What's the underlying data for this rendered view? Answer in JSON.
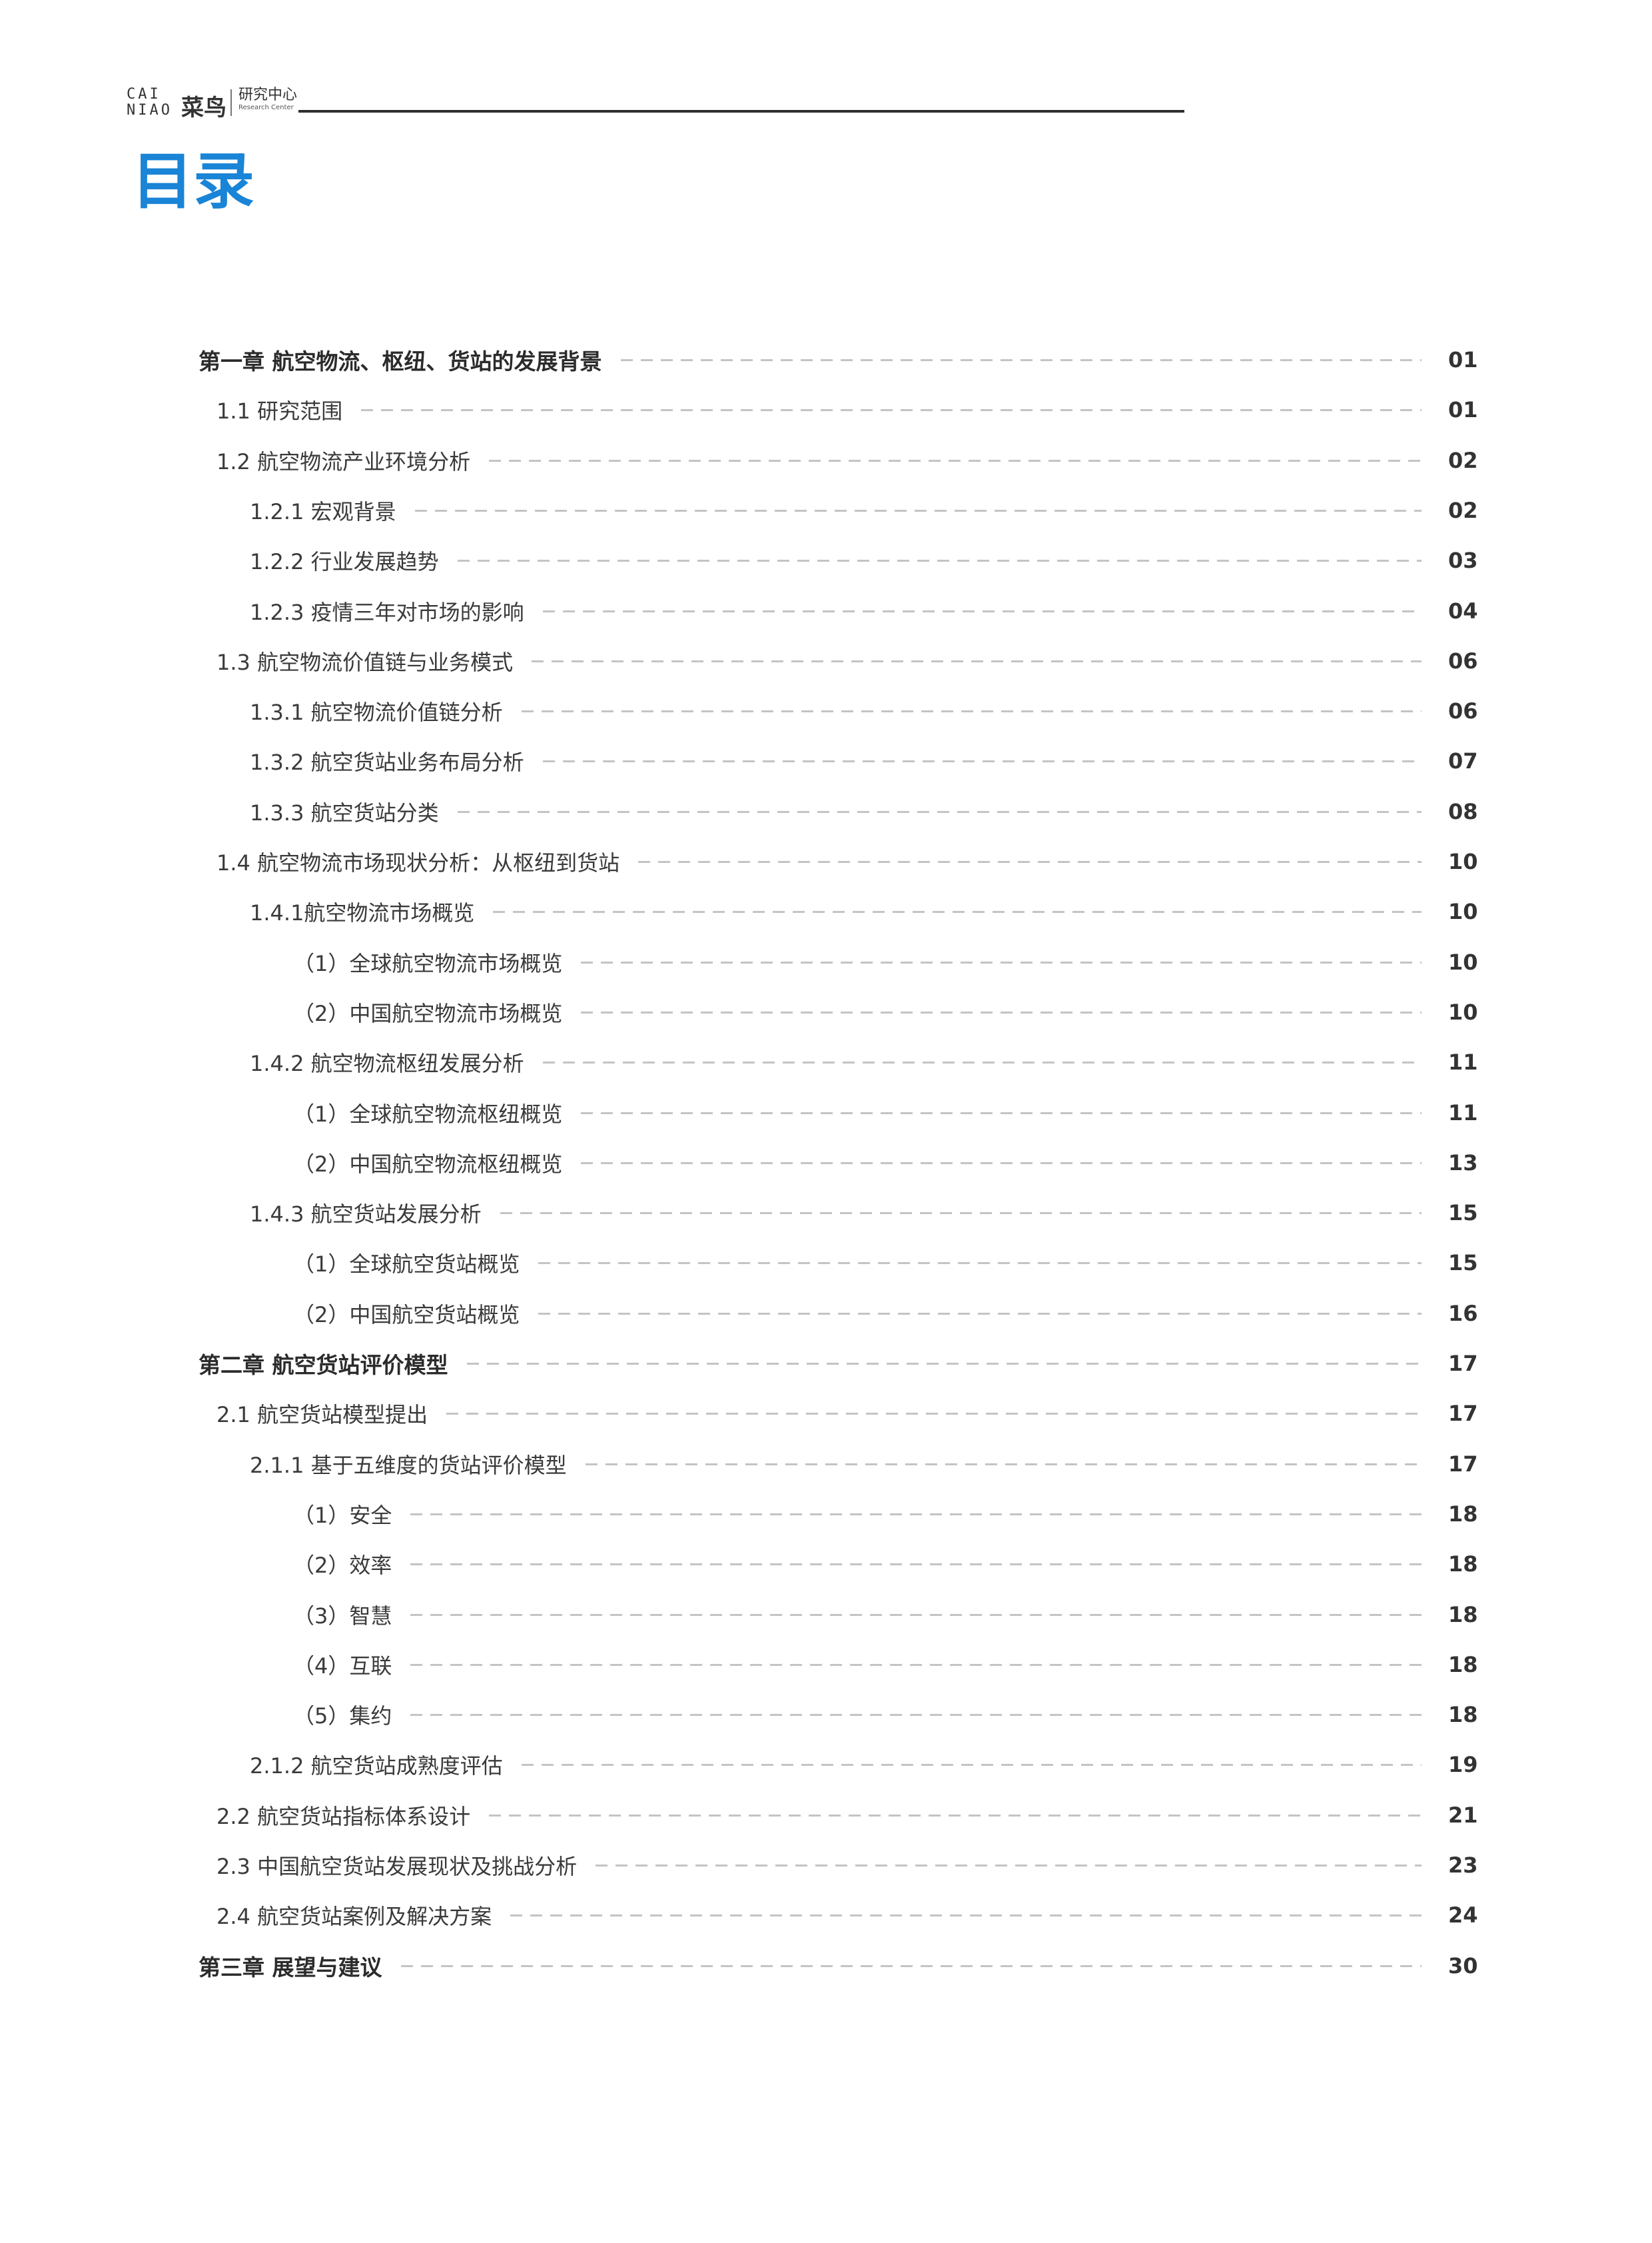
{
  "header": {
    "logo_en": "CAI NIAO",
    "logo_cn": "菜鸟",
    "research_cn": "研究中心",
    "research_en": "Research Center"
  },
  "title": "目录",
  "accent_color": "#1a84d6",
  "toc": [
    {
      "level": 0,
      "text": "第一章 航空物流、枢纽、货站的发展背景",
      "page": "01"
    },
    {
      "level": 1,
      "text": "1.1 研究范围",
      "page": "01"
    },
    {
      "level": 1,
      "text": "1.2 航空物流产业环境分析",
      "page": "02"
    },
    {
      "level": 2,
      "text": "1.2.1 宏观背景",
      "page": "02"
    },
    {
      "level": 2,
      "text": "1.2.2 行业发展趋势",
      "page": "03"
    },
    {
      "level": 2,
      "text": "1.2.3 疫情三年对市场的影响",
      "page": "04"
    },
    {
      "level": 1,
      "text": "1.3 航空物流价值链与业务模式",
      "page": "06"
    },
    {
      "level": 2,
      "text": "1.3.1 航空物流价值链分析",
      "page": "06"
    },
    {
      "level": 2,
      "text": "1.3.2 航空货站业务布局分析",
      "page": "07"
    },
    {
      "level": 2,
      "text": "1.3.3 航空货站分类",
      "page": "08"
    },
    {
      "level": 1,
      "text": "1.4 航空物流市场现状分析：从枢纽到货站",
      "page": "10"
    },
    {
      "level": 2,
      "text": "1.4.1航空物流市场概览",
      "page": "10"
    },
    {
      "level": 3,
      "text": "（1）全球航空物流市场概览",
      "page": "10"
    },
    {
      "level": 3,
      "text": "（2）中国航空物流市场概览",
      "page": "10"
    },
    {
      "level": 2,
      "text": "1.4.2 航空物流枢纽发展分析",
      "page": "11"
    },
    {
      "level": 3,
      "text": "（1）全球航空物流枢纽概览",
      "page": "11"
    },
    {
      "level": 3,
      "text": "（2）中国航空物流枢纽概览",
      "page": "13"
    },
    {
      "level": 2,
      "text": "1.4.3 航空货站发展分析",
      "page": "15"
    },
    {
      "level": 3,
      "text": "（1）全球航空货站概览",
      "page": "15"
    },
    {
      "level": 3,
      "text": "（2）中国航空货站概览",
      "page": "16"
    },
    {
      "level": 0,
      "text": "第二章 航空货站评价模型",
      "page": "17"
    },
    {
      "level": 1,
      "text": "2.1 航空货站模型提出",
      "page": "17"
    },
    {
      "level": 2,
      "text": "2.1.1 基于五维度的货站评价模型",
      "page": "17"
    },
    {
      "level": 3,
      "text": "（1）安全",
      "page": "18"
    },
    {
      "level": 3,
      "text": "（2）效率",
      "page": "18"
    },
    {
      "level": 3,
      "text": "（3）智慧",
      "page": "18"
    },
    {
      "level": 3,
      "text": "（4）互联",
      "page": "18"
    },
    {
      "level": 3,
      "text": "（5）集约",
      "page": "18"
    },
    {
      "level": 2,
      "text": "2.1.2 航空货站成熟度评估",
      "page": "19"
    },
    {
      "level": 1,
      "text": "2.2 航空货站指标体系设计",
      "page": "21"
    },
    {
      "level": 1,
      "text": "2.3 中国航空货站发展现状及挑战分析",
      "page": "23"
    },
    {
      "level": 1,
      "text": "2.4 航空货站案例及解决方案",
      "page": "24"
    },
    {
      "level": 0,
      "text": "第三章 展望与建议",
      "page": "30"
    }
  ]
}
